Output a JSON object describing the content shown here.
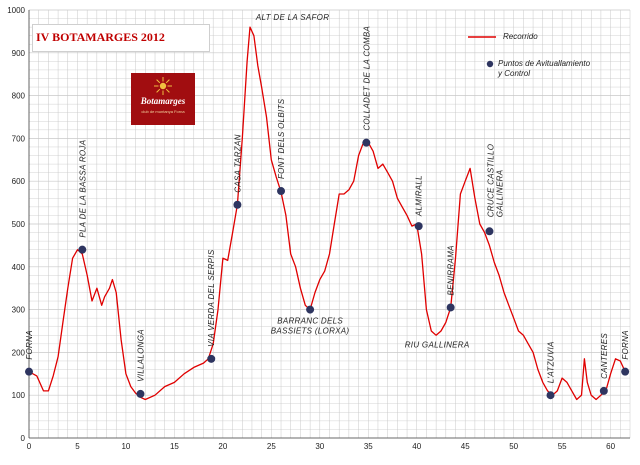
{
  "header": {
    "title": "IV BOTAMARGES 2012"
  },
  "logo": {
    "icon": "sun-icon",
    "name": "Botamarges",
    "tagline": "club de muntanya Forna",
    "color": "#a10d10"
  },
  "legend": {
    "line_label": "Recorrido",
    "point_label_1": "Puntos de Avituallamiento",
    "point_label_2": "y Control"
  },
  "colors": {
    "line": "#e00000",
    "point": "#2e3560",
    "grid": "#c8c8c8"
  },
  "chart_data": {
    "type": "line",
    "title": "IV BOTAMARGES 2012",
    "xlabel": "",
    "ylabel": "",
    "xlim": [
      0,
      62
    ],
    "ylim": [
      0,
      1000
    ],
    "xticks": [
      0,
      5,
      10,
      15,
      20,
      25,
      30,
      35,
      40,
      45,
      50,
      55,
      60
    ],
    "yticks": [
      0,
      100,
      200,
      300,
      400,
      500,
      600,
      700,
      800,
      900,
      1000
    ],
    "grid": true,
    "legend_position": "top-right",
    "series": [
      {
        "name": "Recorrido",
        "x": [
          0,
          0.8,
          1.5,
          2.0,
          2.5,
          3.0,
          3.5,
          4.0,
          4.5,
          5.0,
          5.5,
          6.0,
          6.5,
          7.0,
          7.5,
          7.8,
          8.3,
          8.6,
          9.0,
          9.5,
          10.0,
          10.5,
          11.0,
          11.5,
          12.0,
          13.0,
          14.0,
          15.0,
          16.0,
          17.0,
          18.0,
          18.5,
          19.0,
          19.5,
          20.0,
          20.5,
          21.0,
          21.5,
          22.0,
          22.5,
          22.8,
          23.2,
          23.6,
          24.0,
          24.5,
          25.0,
          25.5,
          26.0,
          26.5,
          27.0,
          27.5,
          28.0,
          28.5,
          29.0,
          29.5,
          30.0,
          30.5,
          31.0,
          31.5,
          32.0,
          32.5,
          33.0,
          33.5,
          34.0,
          34.5,
          35.0,
          35.5,
          36.0,
          36.5,
          37.0,
          37.5,
          38.0,
          38.5,
          39.0,
          39.5,
          40.0,
          40.5,
          41.0,
          41.5,
          42.0,
          42.5,
          43.0,
          43.5,
          44.0,
          44.5,
          45.0,
          45.5,
          46.0,
          46.5,
          47.0,
          47.5,
          48.0,
          48.5,
          49.0,
          49.5,
          50.0,
          50.5,
          51.0,
          51.5,
          52.0,
          52.5,
          53.0,
          53.5,
          54.0,
          54.5,
          55.0,
          55.5,
          56.0,
          56.5,
          57.0,
          57.3,
          57.6,
          58.0,
          58.5,
          59.0,
          59.5,
          60.0,
          60.5,
          61.0,
          61.5
        ],
        "y": [
          155,
          145,
          110,
          110,
          145,
          190,
          270,
          350,
          420,
          440,
          430,
          380,
          320,
          350,
          310,
          330,
          350,
          370,
          340,
          230,
          150,
          120,
          105,
          95,
          90,
          100,
          120,
          130,
          150,
          165,
          175,
          185,
          220,
          300,
          420,
          415,
          480,
          545,
          700,
          880,
          960,
          940,
          870,
          820,
          750,
          650,
          610,
          575,
          520,
          430,
          400,
          350,
          310,
          300,
          340,
          370,
          390,
          430,
          500,
          570,
          570,
          580,
          600,
          660,
          690,
          690,
          670,
          630,
          640,
          620,
          600,
          560,
          540,
          520,
          495,
          500,
          430,
          300,
          250,
          240,
          250,
          270,
          305,
          420,
          570,
          600,
          630,
          560,
          500,
          480,
          450,
          410,
          380,
          340,
          310,
          280,
          250,
          240,
          220,
          200,
          160,
          130,
          110,
          100,
          110,
          140,
          130,
          110,
          90,
          100,
          185,
          130,
          100,
          90,
          100,
          110,
          150,
          185,
          180,
          155
        ],
        "color": "#e00000"
      }
    ],
    "points": [
      {
        "name": "Puntos de Avituallamiento y Control",
        "x": 0,
        "y": 155,
        "label": "FORNA"
      },
      {
        "x": 5.5,
        "y": 440,
        "label": "PLA DE LA BASSA ROJA"
      },
      {
        "x": 11.5,
        "y": 103,
        "label": "VILLALONGA"
      },
      {
        "x": 18.8,
        "y": 185,
        "label": "VIA VERDA DEL SERPIS"
      },
      {
        "x": 21.5,
        "y": 545,
        "label": "CASA TARZAN"
      },
      {
        "x": 26.0,
        "y": 577,
        "label": "FONT DELS OLBITS"
      },
      {
        "x": 29.0,
        "y": 300,
        "label_1": "BARRANC DELS",
        "label_2": "BASSIETS (LORXA)"
      },
      {
        "x": 34.8,
        "y": 690,
        "label": "COLLADET DE LA COMBA"
      },
      {
        "x": 40.2,
        "y": 495,
        "label": "ALMIRALL"
      },
      {
        "x": 43.5,
        "y": 305,
        "label": "BENIRRAMA"
      },
      {
        "x": 47.5,
        "y": 483,
        "label_1": "CRUCE CASTILLO",
        "label_2": "GALLINERA"
      },
      {
        "x": 53.8,
        "y": 100,
        "label": "L'ATZUVIA"
      },
      {
        "x": 59.3,
        "y": 110,
        "label": "CANTERES"
      },
      {
        "x": 61.5,
        "y": 155,
        "label": "FORNA"
      }
    ],
    "annotations": [
      {
        "x": 23.2,
        "y": 960,
        "label": "ALT DE LA SAFOR"
      },
      {
        "x": 42.0,
        "y": 240,
        "label": "RIU GALLINERA"
      }
    ]
  }
}
